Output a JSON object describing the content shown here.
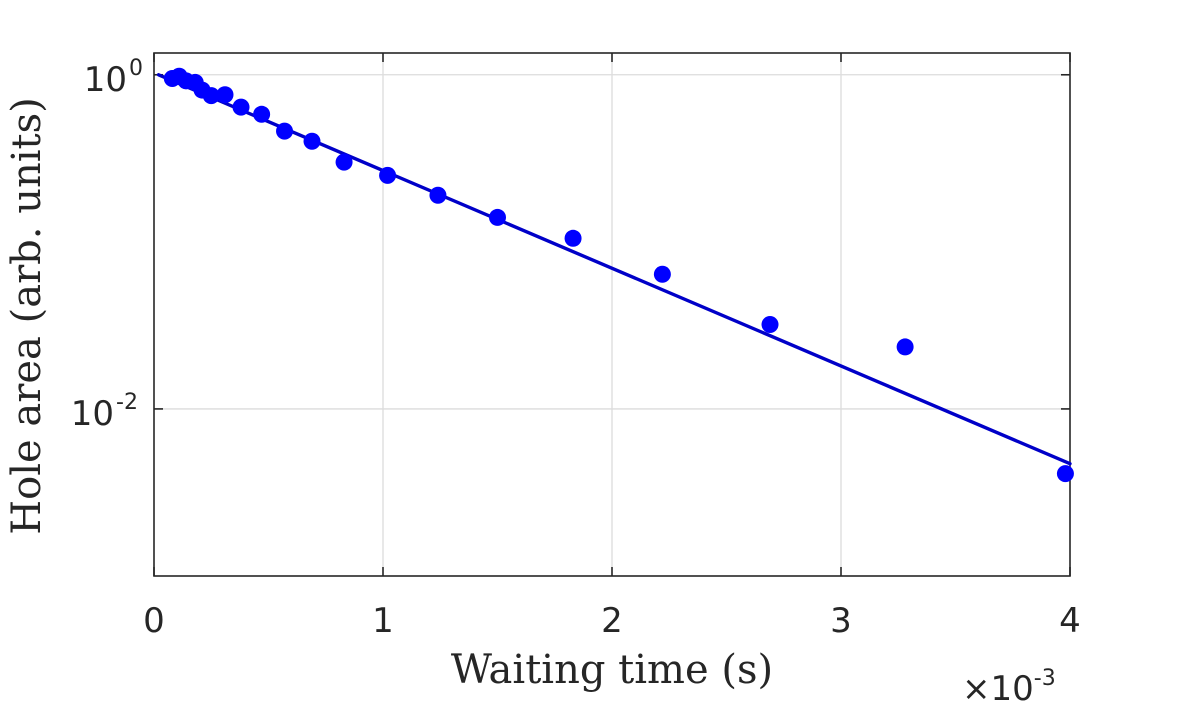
{
  "chart_data": {
    "type": "scatter",
    "title": "",
    "xlabel": "Waiting time (s)",
    "ylabel": "Hole area (arb. units)",
    "x_multiplier": {
      "base": "×10",
      "exponent": "-3"
    },
    "xlim": [
      0,
      0.004
    ],
    "ylim": [
      0.001,
      1.35
    ],
    "yscale": "log",
    "grid": true,
    "x_ticks": [
      {
        "value": 0,
        "label": "0"
      },
      {
        "value": 0.001,
        "label": "1"
      },
      {
        "value": 0.002,
        "label": "2"
      },
      {
        "value": 0.003,
        "label": "3"
      },
      {
        "value": 0.004,
        "label": "4"
      }
    ],
    "y_ticks": [
      {
        "value": 1,
        "base": "10",
        "exponent": "0"
      },
      {
        "value": 0.01,
        "base": "10",
        "exponent": "-2"
      }
    ],
    "series": [
      {
        "kind": "points",
        "color": "#0000ff",
        "points": [
          {
            "x": 8e-05,
            "y": 0.95
          },
          {
            "x": 0.00011,
            "y": 0.98
          },
          {
            "x": 0.00014,
            "y": 0.92
          },
          {
            "x": 0.00018,
            "y": 0.9
          },
          {
            "x": 0.00021,
            "y": 0.81
          },
          {
            "x": 0.00025,
            "y": 0.75
          },
          {
            "x": 0.00031,
            "y": 0.76
          },
          {
            "x": 0.00038,
            "y": 0.64
          },
          {
            "x": 0.00047,
            "y": 0.58
          },
          {
            "x": 0.00057,
            "y": 0.46
          },
          {
            "x": 0.00069,
            "y": 0.4
          },
          {
            "x": 0.00083,
            "y": 0.3
          },
          {
            "x": 0.00102,
            "y": 0.25
          },
          {
            "x": 0.00124,
            "y": 0.19
          },
          {
            "x": 0.0015,
            "y": 0.14
          },
          {
            "x": 0.00183,
            "y": 0.105
          },
          {
            "x": 0.00222,
            "y": 0.064
          },
          {
            "x": 0.00269,
            "y": 0.032
          },
          {
            "x": 0.00328,
            "y": 0.0235
          },
          {
            "x": 0.00398,
            "y": 0.0041
          }
        ]
      },
      {
        "kind": "fit-line",
        "color": "#0000c8",
        "points": [
          {
            "x": 2e-05,
            "y": 1.0
          },
          {
            "x": 0.004,
            "y": 0.0047
          }
        ]
      }
    ]
  }
}
